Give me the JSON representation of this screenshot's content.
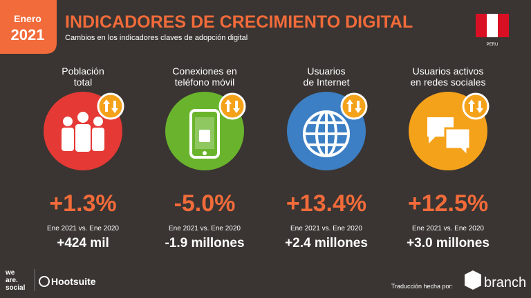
{
  "header": {
    "badge_month": "Enero",
    "badge_year": "2021",
    "title": "INDICADORES DE CRECIMIENTO DIGITAL",
    "subtitle": "Cambios en los indicadores claves de adopción digital",
    "country": "PERU"
  },
  "cards": [
    {
      "label": [
        "Población",
        "total"
      ],
      "change": "+1.3%",
      "period": "Ene 2021 vs. Ene 2020",
      "absolute": "+424 mil"
    },
    {
      "label": [
        "Conexiones en",
        "teléfono móvil"
      ],
      "change": "-5.0%",
      "period": "Ene 2021 vs. Ene 2020",
      "absolute": "-1.9 millones"
    },
    {
      "label": [
        "Usuarios",
        "de Internet"
      ],
      "change": "+13.4%",
      "period": "Ene 2021 vs. Ene 2020",
      "absolute": "+2.4 millones"
    },
    {
      "label": [
        "Usuarios activos",
        "en redes sociales"
      ],
      "change": "+12.5%",
      "period": "Ene 2021 vs.  Ene 2020",
      "absolute": "+3.0 millones"
    }
  ],
  "footer": {
    "brand_lines": [
      "we",
      "are.",
      "social"
    ],
    "hootsuite": "Hootsuite",
    "credit": "Traducción hecha por:",
    "partner": "branch"
  }
}
